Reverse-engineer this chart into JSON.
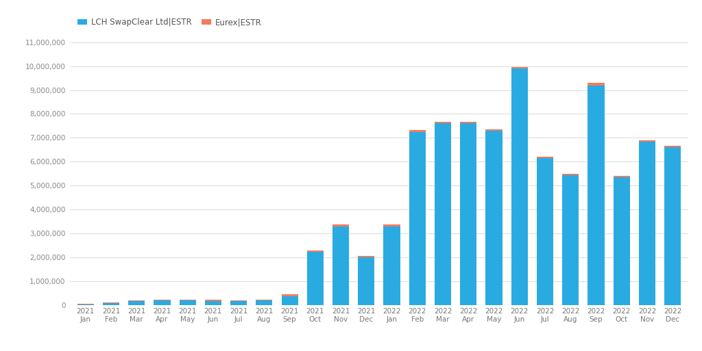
{
  "categories": [
    "2021\nJan",
    "2021\nFeb",
    "2021\nMar",
    "2021\nApr",
    "2021\nMay",
    "2021\nJun",
    "2021\nJul",
    "2021\nAug",
    "2021\nSep",
    "2021\nOct",
    "2021\nNov",
    "2021\nDec",
    "2022\nJan",
    "2022\nFeb",
    "2022\nMar",
    "2022\nApr",
    "2022\nMay",
    "2022\nJun",
    "2022\nJul",
    "2022\nAug",
    "2022\nSep",
    "2022\nOct",
    "2022\nNov",
    "2022\nDec"
  ],
  "lch": [
    50000,
    100000,
    170000,
    200000,
    200000,
    190000,
    170000,
    200000,
    380000,
    2250000,
    3300000,
    2000000,
    3300000,
    7250000,
    7600000,
    7600000,
    7300000,
    9900000,
    6150000,
    5450000,
    9200000,
    5350000,
    6850000,
    6600000
  ],
  "eurex": [
    15000,
    30000,
    50000,
    40000,
    40000,
    35000,
    35000,
    40000,
    100000,
    50000,
    80000,
    80000,
    80000,
    80000,
    80000,
    80000,
    70000,
    60000,
    60000,
    60000,
    100000,
    60000,
    60000,
    60000
  ],
  "lch_color": "#29ABE2",
  "eurex_color": "#F47B5E",
  "background_color": "#FFFFFF",
  "plot_bg_color": "#FFFFFF",
  "grid_color": "#DDDDDD",
  "ylim": [
    0,
    11000000
  ],
  "yticks": [
    0,
    1000000,
    2000000,
    3000000,
    4000000,
    5000000,
    6000000,
    7000000,
    8000000,
    9000000,
    10000000,
    11000000
  ],
  "legend_labels": [
    "LCH SwapClear Ltd|ESTR",
    "Eurex|ESTR"
  ],
  "tick_fontsize": 7.5,
  "legend_fontsize": 8.5,
  "bar_width": 0.65
}
